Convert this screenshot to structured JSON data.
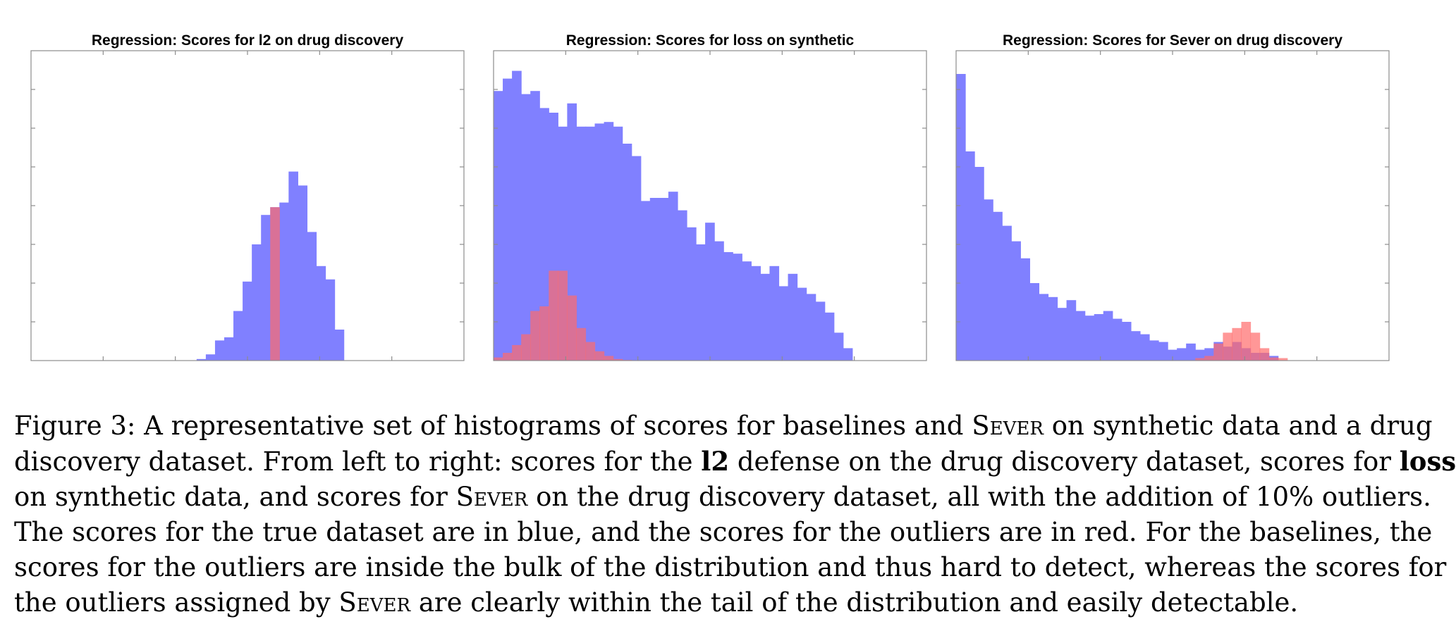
{
  "chart_data": [
    {
      "type": "bar",
      "title": "Regression: Scores for l2 on drug discovery",
      "xlabel": "",
      "ylabel": "",
      "x_bins": 40,
      "ylim": [
        0,
        1
      ],
      "series": [
        {
          "color": "#8080ff",
          "values": [
            0,
            0,
            0,
            0,
            0,
            0,
            0,
            0,
            0,
            0,
            0,
            0,
            0,
            0,
            0,
            0,
            0,
            0,
            0.005,
            0.02,
            0.065,
            0.075,
            0.16,
            0.255,
            0.375,
            0.47,
            0.495,
            0.51,
            0.61,
            0.565,
            0.415,
            0.305,
            0.262,
            0.1,
            0,
            0,
            0,
            0,
            0,
            0
          ]
        },
        {
          "color": "#ff6b6b",
          "values": [
            0,
            0,
            0,
            0,
            0,
            0,
            0,
            0,
            0,
            0,
            0,
            0,
            0,
            0,
            0,
            0,
            0,
            0,
            0,
            0,
            0,
            0,
            0,
            0,
            0,
            0,
            0.495,
            0,
            0,
            0,
            0,
            0,
            0,
            0,
            0,
            0,
            0,
            0,
            0,
            0
          ]
        }
      ]
    },
    {
      "type": "bar",
      "title": "Regression: Scores for loss on synthetic",
      "xlabel": "",
      "ylabel": "",
      "x_bins": 40,
      "ylim": [
        0,
        1
      ],
      "series": [
        {
          "color": "#8080ff",
          "values": [
            0.87,
            0.91,
            0.935,
            0.86,
            0.87,
            0.815,
            0.8,
            0.755,
            0.83,
            0.755,
            0.755,
            0.765,
            0.77,
            0.755,
            0.7,
            0.66,
            0.515,
            0.525,
            0.525,
            0.545,
            0.485,
            0.43,
            0.375,
            0.445,
            0.385,
            0.35,
            0.345,
            0.32,
            0.305,
            0.28,
            0.305,
            0.24,
            0.28,
            0.235,
            0.215,
            0.19,
            0.155,
            0.09,
            0.04,
            0
          ]
        },
        {
          "color": "#ff6b6b",
          "values": [
            0.01,
            0.025,
            0.05,
            0.085,
            0.16,
            0.175,
            0.29,
            0.29,
            0.21,
            0.105,
            0.06,
            0.03,
            0.015,
            0.005,
            0.002,
            0.001,
            0,
            0,
            0,
            0,
            0,
            0,
            0,
            0,
            0,
            0,
            0,
            0,
            0,
            0,
            0,
            0,
            0,
            0,
            0,
            0,
            0,
            0,
            0,
            0
          ]
        }
      ]
    },
    {
      "type": "bar",
      "title": "Regression: Scores for Sever on drug discovery",
      "xlabel": "",
      "ylabel": "",
      "x_bins": 40,
      "ylim": [
        0,
        1
      ],
      "series": [
        {
          "color": "#8080ff",
          "values": [
            0.925,
            0.675,
            0.625,
            0.52,
            0.48,
            0.435,
            0.385,
            0.33,
            0.25,
            0.215,
            0.205,
            0.17,
            0.195,
            0.16,
            0.145,
            0.15,
            0.16,
            0.135,
            0.125,
            0.095,
            0.085,
            0.065,
            0.06,
            0.035,
            0.04,
            0.055,
            0.035,
            0.04,
            0.06,
            0.045,
            0.06,
            0.04,
            0.025,
            0.025,
            0.015,
            0,
            0,
            0,
            0,
            0
          ]
        },
        {
          "color": "#ff6b6b",
          "values": [
            0,
            0,
            0,
            0,
            0,
            0,
            0,
            0,
            0,
            0,
            0,
            0,
            0,
            0,
            0,
            0,
            0,
            0,
            0,
            0,
            0,
            0,
            0,
            0,
            0,
            0,
            0.008,
            0.015,
            0.055,
            0.09,
            0.105,
            0.125,
            0.09,
            0.04,
            0.01,
            0.008,
            0,
            0,
            0,
            0
          ]
        }
      ]
    }
  ],
  "caption": {
    "lines": [
      [
        "Figure 3: A representative set of histograms of scores for baselines and ",
        {
          "sc": "Sever"
        },
        " on synthetic data and a drug"
      ],
      [
        "discovery dataset. From left to right: scores for the ",
        {
          "b": "l2"
        },
        " defense on the drug discovery dataset, scores for ",
        {
          "b": "loss"
        }
      ],
      [
        "on synthetic data, and scores for ",
        {
          "sc": "Sever"
        },
        " on the drug discovery dataset, all with the addition of 10% outliers."
      ],
      [
        "The scores for the true dataset are in blue, and the scores for the outliers are in red. For the baselines, the"
      ],
      [
        "scores for the outliers are inside the bulk of the distribution and thus hard to detect, whereas the scores for"
      ],
      [
        "the outliers assigned by ",
        {
          "sc": "Sever"
        },
        " are clearly within the tail of the distribution and easily detectable."
      ]
    ]
  }
}
